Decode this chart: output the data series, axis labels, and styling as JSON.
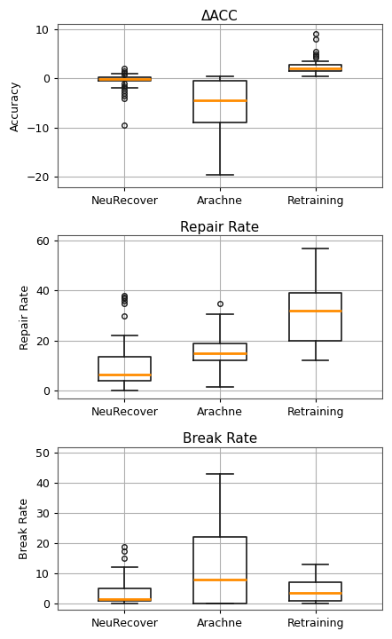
{
  "plots": [
    {
      "title": "ΔACC",
      "ylabel": "Accuracy",
      "ylim": [
        -22,
        11
      ],
      "yticks": [
        -20,
        -10,
        0,
        10
      ],
      "groups": [
        "NeuRecover",
        "Arachne",
        "Retraining"
      ],
      "boxes": [
        {
          "q1": -0.5,
          "median": -0.1,
          "q3": 0.3,
          "whislo": -2.0,
          "whishi": 1.0,
          "fliers": [
            2.0,
            1.5,
            1.2,
            0.8,
            -1.0,
            -1.5,
            -2.0,
            -2.5,
            -3.0,
            -3.5,
            -4.0,
            -9.5
          ]
        },
        {
          "q1": -9.0,
          "median": -4.5,
          "q3": -0.5,
          "whislo": -19.5,
          "whishi": 0.5,
          "fliers": []
        },
        {
          "q1": 1.5,
          "median": 2.0,
          "q3": 2.8,
          "whislo": 0.5,
          "whishi": 3.5,
          "fliers": [
            9.0,
            8.0,
            5.5,
            5.0,
            4.5,
            4.2
          ]
        }
      ]
    },
    {
      "title": "Repair Rate",
      "ylabel": "Repair Rate",
      "ylim": [
        -3,
        62
      ],
      "yticks": [
        0,
        20,
        40,
        60
      ],
      "groups": [
        "NeuRecover",
        "Arachne",
        "Retraining"
      ],
      "boxes": [
        {
          "q1": 4.0,
          "median": 6.5,
          "q3": 13.5,
          "whislo": 0.0,
          "whishi": 22.0,
          "fliers": [
            30.0,
            35.0,
            36.0,
            37.0,
            37.5,
            38.0
          ]
        },
        {
          "q1": 12.0,
          "median": 15.0,
          "q3": 19.0,
          "whislo": 1.5,
          "whishi": 30.5,
          "fliers": [
            35.0
          ]
        },
        {
          "q1": 20.0,
          "median": 32.0,
          "q3": 39.0,
          "whislo": 12.0,
          "whishi": 57.0,
          "fliers": []
        }
      ]
    },
    {
      "title": "Break Rate",
      "ylabel": "Break Rate",
      "ylim": [
        -2,
        52
      ],
      "yticks": [
        0,
        10,
        20,
        30,
        40,
        50
      ],
      "groups": [
        "NeuRecover",
        "Arachne",
        "Retraining"
      ],
      "boxes": [
        {
          "q1": 1.0,
          "median": 1.5,
          "q3": 5.0,
          "whislo": 0.0,
          "whishi": 12.0,
          "fliers": [
            15.0,
            17.5,
            19.0
          ]
        },
        {
          "q1": 0.0,
          "median": 8.0,
          "q3": 22.0,
          "whislo": 0.0,
          "whishi": 43.0,
          "fliers": []
        },
        {
          "q1": 1.0,
          "median": 3.5,
          "q3": 7.0,
          "whislo": 0.0,
          "whishi": 13.0,
          "fliers": []
        }
      ]
    }
  ],
  "median_color": "#ff8c00",
  "box_color": "#1a1a1a",
  "flier_color": "#1a1a1a",
  "grid_color": "#b0b0b0",
  "bg_color": "#ffffff",
  "box_width": 0.55
}
